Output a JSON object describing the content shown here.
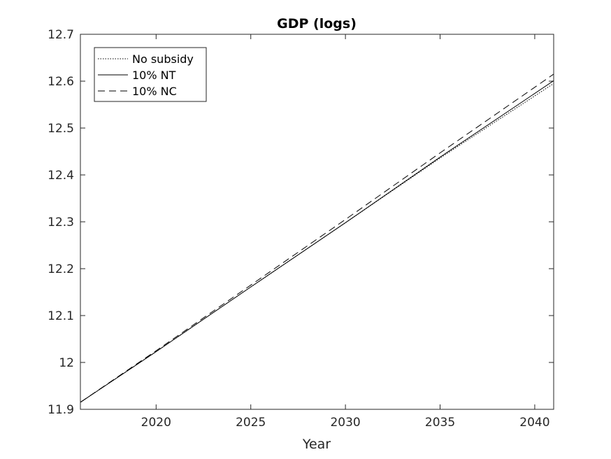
{
  "chart_data": {
    "type": "line",
    "title": "GDP (logs)",
    "xlabel": "Year",
    "ylabel": "",
    "xlim": [
      2016,
      2041
    ],
    "ylim": [
      11.9,
      12.7
    ],
    "xticks": [
      2020,
      2025,
      2030,
      2035,
      2040
    ],
    "xtick_labels": [
      "2020",
      "2025",
      "2030",
      "2035",
      "2040"
    ],
    "yticks": [
      11.9,
      12,
      12.1,
      12.2,
      12.3,
      12.4,
      12.5,
      12.6,
      12.7
    ],
    "ytick_labels": [
      "11.9",
      "12",
      "12.1",
      "12.2",
      "12.3",
      "12.4",
      "12.5",
      "12.6",
      "12.7"
    ],
    "grid": false,
    "legend_position": "top-left",
    "x": [
      2016,
      2020,
      2025,
      2030,
      2035,
      2041
    ],
    "series": [
      {
        "name": "No subsidy",
        "style": "dotted",
        "color": "#000000",
        "values": [
          11.915,
          12.023,
          12.161,
          12.298,
          12.436,
          12.595
        ]
      },
      {
        "name": "10% NT",
        "style": "solid",
        "color": "#000000",
        "values": [
          11.915,
          12.023,
          12.161,
          12.298,
          12.438,
          12.601
        ]
      },
      {
        "name": "10% NC",
        "style": "dashed",
        "color": "#000000",
        "values": [
          11.915,
          12.025,
          12.165,
          12.305,
          12.447,
          12.615
        ]
      }
    ]
  }
}
